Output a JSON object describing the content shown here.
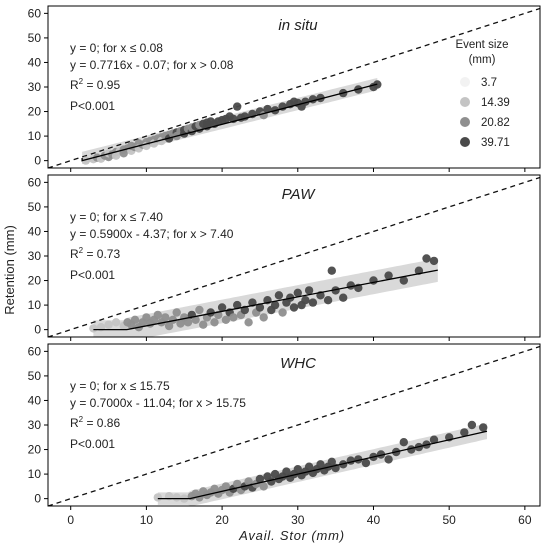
{
  "chart_data": {
    "type": "scatter",
    "xlabel": "Avail. Stor (mm)",
    "ylabel": "Retention (mm)",
    "xlim": [
      -3,
      62
    ],
    "ylim": [
      -3,
      63
    ],
    "x_ticks": [
      0,
      10,
      20,
      30,
      40,
      50,
      60
    ],
    "y_ticks": [
      0,
      10,
      20,
      30,
      40,
      50,
      60
    ],
    "legend": {
      "title": [
        "Event size",
        "(mm)"
      ],
      "entries": [
        {
          "label": "3.7",
          "color": "#f2f2f2"
        },
        {
          "label": "14.39",
          "color": "#c4c4c4"
        },
        {
          "label": "20.82",
          "color": "#8f8f8f"
        },
        {
          "label": "39.71",
          "color": "#4a4a4a"
        }
      ],
      "placement": "top-right of first panel"
    },
    "reference_line": {
      "style": "dashed",
      "relation": "y = x"
    },
    "panels": [
      {
        "title": "in situ",
        "annotation": {
          "line1": "y = 0; for x ≤ 0.08",
          "line2": "y = 0.7716x - 0.07; for x > 0.08",
          "r2": "= 0.95",
          "p": "P<0.001"
        },
        "breakpoint": 0.08,
        "slope": 0.7716,
        "intercept": -0.07,
        "fit_x_range": [
          1.5,
          40.5
        ],
        "band_halfwidth": 2.5,
        "points": [
          [
            2,
            0,
            1
          ],
          [
            3,
            0.6,
            1
          ],
          [
            3.5,
            1.2,
            2
          ],
          [
            4,
            0.8,
            1
          ],
          [
            4.5,
            2,
            2
          ],
          [
            5,
            1.5,
            2
          ],
          [
            5,
            3,
            1
          ],
          [
            5.5,
            2.5,
            2
          ],
          [
            6,
            3.5,
            2
          ],
          [
            6,
            2,
            1
          ],
          [
            6.5,
            4,
            1
          ],
          [
            7,
            4.5,
            2
          ],
          [
            7,
            3,
            2
          ],
          [
            7.5,
            5,
            2
          ],
          [
            8,
            4,
            1
          ],
          [
            8,
            6,
            2
          ],
          [
            8.5,
            5.5,
            2
          ],
          [
            9,
            7,
            2
          ],
          [
            9,
            5,
            1
          ],
          [
            9.5,
            6.5,
            2
          ],
          [
            10,
            7.5,
            2
          ],
          [
            10,
            6,
            1
          ],
          [
            10.5,
            8,
            2
          ],
          [
            11,
            8.5,
            2
          ],
          [
            11,
            7,
            1
          ],
          [
            11.5,
            9,
            2
          ],
          [
            12,
            9.5,
            2
          ],
          [
            12,
            8,
            1
          ],
          [
            12.5,
            10,
            2
          ],
          [
            13,
            10.5,
            2
          ],
          [
            13,
            9,
            3
          ],
          [
            13.5,
            11,
            2
          ],
          [
            14,
            11.5,
            3
          ],
          [
            14,
            10,
            2
          ],
          [
            14.5,
            12,
            2
          ],
          [
            15,
            11,
            3
          ],
          [
            15,
            12.5,
            3
          ],
          [
            15.5,
            13,
            2
          ],
          [
            16,
            12,
            3
          ],
          [
            16,
            13.5,
            2
          ],
          [
            16.5,
            14,
            3
          ],
          [
            17,
            13,
            3
          ],
          [
            17,
            14.5,
            2
          ],
          [
            17.5,
            15,
            3
          ],
          [
            18,
            14,
            3
          ],
          [
            18,
            15.5,
            3
          ],
          [
            18.5,
            16,
            3
          ],
          [
            19,
            15,
            3
          ],
          [
            19.5,
            16,
            3
          ],
          [
            20,
            16.5,
            3
          ],
          [
            20.5,
            17,
            3
          ],
          [
            21,
            18,
            3
          ],
          [
            21.5,
            17,
            3
          ],
          [
            22,
            22,
            3
          ],
          [
            22.5,
            17.5,
            3
          ],
          [
            23,
            18,
            3
          ],
          [
            24,
            19,
            3
          ],
          [
            25,
            20,
            3
          ],
          [
            25.5,
            18.5,
            2
          ],
          [
            26,
            21,
            3
          ],
          [
            27,
            20.5,
            3
          ],
          [
            28,
            22,
            3
          ],
          [
            29,
            23,
            3
          ],
          [
            29.5,
            24,
            3
          ],
          [
            30,
            23.5,
            3
          ],
          [
            30.5,
            22,
            3
          ],
          [
            31,
            24,
            3
          ],
          [
            32,
            25,
            3
          ],
          [
            33,
            25.5,
            3
          ],
          [
            36,
            27.5,
            3
          ],
          [
            38,
            29,
            3
          ],
          [
            40,
            30,
            3
          ],
          [
            40.5,
            31,
            3
          ]
        ]
      },
      {
        "title": "PAW",
        "annotation": {
          "line1": "y = 0; for x ≤ 7.40",
          "line2": "y = 0.5900x - 4.37; for x > 7.40",
          "r2": "= 0.73",
          "p": "P<0.001"
        },
        "breakpoint": 7.4,
        "slope": 0.59,
        "intercept": -4.37,
        "fit_x_range": [
          3,
          48.5
        ],
        "band_halfwidth": 4.8,
        "points": [
          [
            3,
            0.5,
            1
          ],
          [
            4,
            1,
            1
          ],
          [
            5,
            2,
            1
          ],
          [
            6,
            3,
            1
          ],
          [
            7,
            1.5,
            1
          ],
          [
            7.5,
            3,
            2
          ],
          [
            8,
            2,
            2
          ],
          [
            8.5,
            4,
            2
          ],
          [
            9,
            1,
            2
          ],
          [
            9.5,
            3,
            2
          ],
          [
            10,
            5,
            2
          ],
          [
            10.5,
            2.5,
            2
          ],
          [
            11,
            4,
            2
          ],
          [
            11.5,
            6,
            2
          ],
          [
            12,
            3,
            2
          ],
          [
            12.5,
            5,
            2
          ],
          [
            13,
            1.5,
            2
          ],
          [
            13.5,
            4,
            2
          ],
          [
            14,
            7,
            2
          ],
          [
            14.5,
            2.5,
            2
          ],
          [
            15,
            5,
            2
          ],
          [
            15.5,
            3,
            2
          ],
          [
            16,
            6,
            3
          ],
          [
            16.5,
            4,
            2
          ],
          [
            17,
            8,
            2
          ],
          [
            17.5,
            2,
            2
          ],
          [
            18,
            5,
            2
          ],
          [
            18.5,
            7,
            3
          ],
          [
            19,
            3,
            2
          ],
          [
            19.5,
            6,
            2
          ],
          [
            20,
            9,
            3
          ],
          [
            20.5,
            4,
            2
          ],
          [
            21,
            7,
            3
          ],
          [
            21.5,
            5,
            2
          ],
          [
            22,
            10,
            3
          ],
          [
            22.5,
            6,
            2
          ],
          [
            23,
            8,
            3
          ],
          [
            23.5,
            3,
            2
          ],
          [
            24,
            11,
            3
          ],
          [
            24.5,
            7,
            2
          ],
          [
            25,
            9,
            3
          ],
          [
            25.5,
            5,
            2
          ],
          [
            26,
            12,
            3
          ],
          [
            26.5,
            8,
            3
          ],
          [
            27,
            10,
            3
          ],
          [
            27.5,
            14,
            3
          ],
          [
            28,
            7,
            2
          ],
          [
            28.5,
            11,
            3
          ],
          [
            29,
            13,
            3
          ],
          [
            29.5,
            9,
            3
          ],
          [
            30,
            15,
            3
          ],
          [
            30.5,
            10,
            3
          ],
          [
            31,
            12,
            3
          ],
          [
            31.5,
            16,
            3
          ],
          [
            32,
            11,
            3
          ],
          [
            33,
            14,
            3
          ],
          [
            34,
            12,
            3
          ],
          [
            34.5,
            24,
            3
          ],
          [
            35,
            16,
            3
          ],
          [
            36,
            13,
            3
          ],
          [
            37,
            18,
            3
          ],
          [
            38,
            17,
            3
          ],
          [
            40,
            20,
            3
          ],
          [
            42,
            22,
            3
          ],
          [
            44,
            20,
            3
          ],
          [
            46,
            24,
            3
          ],
          [
            47,
            29,
            3
          ],
          [
            48,
            28,
            3
          ]
        ]
      },
      {
        "title": "WHC",
        "annotation": {
          "line1": "y = 0; for x ≤ 15.75",
          "line2": "y = 0.7000x - 11.04; for x > 15.75",
          "r2": "= 0.86",
          "p": "P<0.001"
        },
        "breakpoint": 15.75,
        "slope": 0.7,
        "intercept": -11.04,
        "fit_x_range": [
          11.5,
          55
        ],
        "band_halfwidth": 3.2,
        "points": [
          [
            11.5,
            0.5,
            1
          ],
          [
            13,
            1,
            1
          ],
          [
            14,
            0.5,
            1
          ],
          [
            15,
            0,
            1
          ],
          [
            16,
            1,
            2
          ],
          [
            16.5,
            2,
            2
          ],
          [
            17,
            0.5,
            2
          ],
          [
            17.5,
            3,
            2
          ],
          [
            18,
            1.5,
            2
          ],
          [
            18.5,
            2.5,
            2
          ],
          [
            19,
            4,
            2
          ],
          [
            19.5,
            2,
            2
          ],
          [
            20,
            3.5,
            2
          ],
          [
            20.5,
            5,
            2
          ],
          [
            21,
            2.5,
            2
          ],
          [
            21.5,
            4,
            3
          ],
          [
            22,
            6,
            2
          ],
          [
            22.5,
            3.5,
            2
          ],
          [
            23,
            5,
            3
          ],
          [
            23.5,
            7,
            2
          ],
          [
            24,
            4.5,
            3
          ],
          [
            24.5,
            6,
            2
          ],
          [
            25,
            8,
            3
          ],
          [
            25.5,
            5,
            2
          ],
          [
            26,
            9,
            3
          ],
          [
            26.5,
            7,
            3
          ],
          [
            27,
            10,
            3
          ],
          [
            27.5,
            8,
            3
          ],
          [
            28,
            9,
            3
          ],
          [
            28.5,
            11,
            3
          ],
          [
            29,
            8.5,
            3
          ],
          [
            29.5,
            10,
            3
          ],
          [
            30,
            12,
            3
          ],
          [
            30.5,
            9.5,
            3
          ],
          [
            31,
            11,
            3
          ],
          [
            31.5,
            13,
            3
          ],
          [
            32,
            10.5,
            3
          ],
          [
            32.5,
            12,
            3
          ],
          [
            33,
            14,
            3
          ],
          [
            33.5,
            11.5,
            3
          ],
          [
            34,
            13,
            3
          ],
          [
            34.5,
            15,
            3
          ],
          [
            35,
            12.5,
            3
          ],
          [
            36,
            14,
            3
          ],
          [
            37,
            15.5,
            3
          ],
          [
            38,
            16,
            3
          ],
          [
            39,
            14.5,
            3
          ],
          [
            40,
            17,
            3
          ],
          [
            41,
            18,
            3
          ],
          [
            42,
            16,
            3
          ],
          [
            43,
            19,
            3
          ],
          [
            44,
            23,
            3
          ],
          [
            45,
            20,
            3
          ],
          [
            46,
            21,
            3
          ],
          [
            47,
            22,
            3
          ],
          [
            48,
            24,
            3
          ],
          [
            50,
            25,
            3
          ],
          [
            52,
            27,
            3
          ],
          [
            53,
            30,
            3
          ],
          [
            54.5,
            29,
            3
          ]
        ]
      }
    ]
  }
}
